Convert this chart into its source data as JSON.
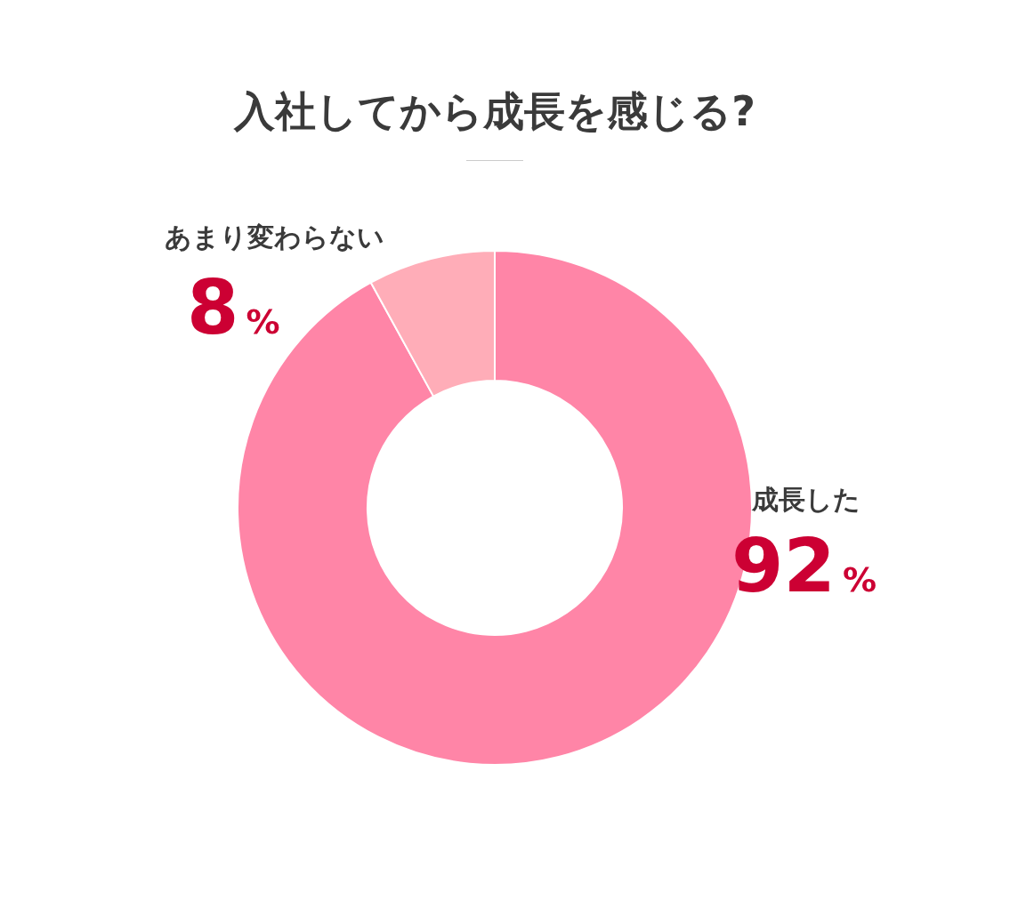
{
  "chart_data": {
    "type": "donut",
    "title": "入社してから成長を感じる?",
    "categories": [
      "成長した",
      "あまり変わらない"
    ],
    "values": [
      92,
      8
    ],
    "colors": [
      "#ff85a7",
      "#ffadb8"
    ],
    "value_labels": [
      "92%",
      "8%"
    ],
    "legend": false
  }
}
